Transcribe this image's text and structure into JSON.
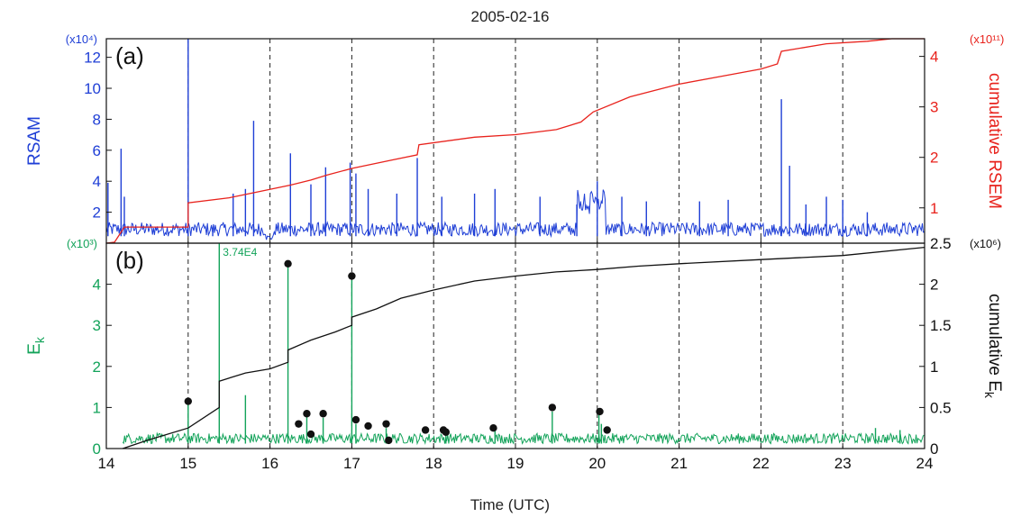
{
  "figure_title": "2005-02-16",
  "x_axis_label": "Time (UTC)",
  "colors": {
    "rsam": "#1f3fd6",
    "rsem": "#e8221c",
    "ek": "#13a35a",
    "cum_ek": "#111111",
    "events": "#111111"
  },
  "chart_data": [
    {
      "panel": "(a)",
      "type": "line",
      "x_ticks": [
        14,
        15,
        16,
        17,
        18,
        19,
        20,
        21,
        22,
        23,
        24
      ],
      "xlim": [
        14,
        24
      ],
      "grid": "dashed vertical lines at each hour",
      "left_axis": {
        "label": "RSAM",
        "multiplier": "(x10⁴)",
        "ylim": [
          0,
          13.2
        ],
        "ticks": [
          2,
          4,
          6,
          8,
          10,
          12
        ]
      },
      "right_axis": {
        "label": "cumulative RSEM",
        "multiplier": "(x10¹¹)",
        "ylim": [
          0.3,
          4.35
        ],
        "ticks": [
          1,
          2,
          3,
          4
        ]
      },
      "series": [
        {
          "axis": "left",
          "description": "RSAM (base noise plus spikes)",
          "spikes": [
            [
              14.02,
              3.9
            ],
            [
              14.18,
              6.1
            ],
            [
              14.22,
              3.0
            ],
            [
              15.0,
              13.2
            ],
            [
              15.3,
              1.0
            ],
            [
              15.55,
              3.2
            ],
            [
              15.7,
              3.5
            ],
            [
              15.8,
              7.9
            ],
            [
              16.25,
              5.8
            ],
            [
              16.5,
              3.8
            ],
            [
              16.68,
              4.9
            ],
            [
              16.98,
              5.2
            ],
            [
              17.05,
              4.5
            ],
            [
              17.2,
              3.5
            ],
            [
              17.55,
              3.2
            ],
            [
              17.8,
              5.5
            ],
            [
              18.1,
              3.0
            ],
            [
              18.5,
              3.2
            ],
            [
              18.75,
              3.5
            ],
            [
              19.3,
              3.0
            ],
            [
              19.75,
              2.5
            ],
            [
              20.0,
              4.0
            ],
            [
              20.3,
              3.0
            ],
            [
              20.6,
              2.7
            ],
            [
              21.25,
              2.7
            ],
            [
              21.6,
              2.8
            ],
            [
              22.25,
              9.3
            ],
            [
              22.35,
              5.0
            ],
            [
              22.55,
              2.5
            ],
            [
              22.8,
              3.0
            ],
            [
              23.0,
              2.8
            ],
            [
              23.3,
              2.0
            ]
          ]
        },
        {
          "axis": "right",
          "description": "cumulative RSEM (step curve)",
          "points": [
            [
              14.0,
              0.3
            ],
            [
              14.1,
              0.32
            ],
            [
              14.22,
              0.62
            ],
            [
              15.0,
              0.62
            ],
            [
              15.0,
              1.1
            ],
            [
              15.5,
              1.2
            ],
            [
              15.8,
              1.3
            ],
            [
              16.25,
              1.45
            ],
            [
              16.5,
              1.55
            ],
            [
              16.7,
              1.65
            ],
            [
              17.0,
              1.78
            ],
            [
              17.5,
              1.95
            ],
            [
              17.8,
              2.05
            ],
            [
              17.82,
              2.25
            ],
            [
              18.5,
              2.4
            ],
            [
              19.0,
              2.45
            ],
            [
              19.5,
              2.55
            ],
            [
              19.8,
              2.7
            ],
            [
              19.95,
              2.9
            ],
            [
              20.4,
              3.2
            ],
            [
              21.0,
              3.45
            ],
            [
              21.5,
              3.6
            ],
            [
              22.0,
              3.75
            ],
            [
              22.2,
              3.85
            ],
            [
              22.25,
              4.1
            ],
            [
              22.8,
              4.25
            ],
            [
              23.3,
              4.3
            ],
            [
              23.6,
              4.35
            ],
            [
              24.0,
              4.35
            ]
          ]
        }
      ]
    },
    {
      "panel": "(b)",
      "type": "line",
      "x_ticks": [
        14,
        15,
        16,
        17,
        18,
        19,
        20,
        21,
        22,
        23,
        24
      ],
      "xlim": [
        14,
        24
      ],
      "grid": "dashed vertical lines at each hour",
      "left_axis": {
        "label": "E",
        "label_sub": "k",
        "multiplier": "(x10³)",
        "ylim": [
          0,
          5
        ],
        "ticks": [
          0,
          1,
          2,
          3,
          4
        ]
      },
      "right_axis": {
        "label": "cumulative E",
        "label_sub": "k",
        "multiplier": "(x10⁶)",
        "ylim": [
          0,
          2.5
        ],
        "ticks": [
          0,
          0.5,
          1,
          1.5,
          2,
          2.5
        ]
      },
      "annotation": {
        "text": "3.74E4",
        "x": 15.38,
        "y": 5
      },
      "series": [
        {
          "axis": "left",
          "description": "E_k (spikes)",
          "spikes": [
            [
              15.0,
              1.1
            ],
            [
              15.38,
              5.0
            ],
            [
              15.7,
              1.3
            ],
            [
              16.22,
              4.5
            ],
            [
              16.45,
              0.8
            ],
            [
              16.65,
              0.75
            ],
            [
              17.0,
              4.1
            ],
            [
              17.05,
              0.6
            ],
            [
              17.42,
              0.5
            ],
            [
              18.15,
              0.45
            ],
            [
              18.75,
              0.45
            ],
            [
              19.45,
              0.9
            ],
            [
              20.02,
              0.85
            ],
            [
              20.05,
              0.6
            ],
            [
              23.4,
              0.5
            ],
            [
              23.7,
              0.45
            ]
          ]
        },
        {
          "axis": "right",
          "description": "cumulative E_k",
          "points": [
            [
              14.2,
              0.0
            ],
            [
              14.5,
              0.1
            ],
            [
              15.0,
              0.25
            ],
            [
              15.38,
              0.5
            ],
            [
              15.38,
              0.82
            ],
            [
              15.7,
              0.92
            ],
            [
              16.0,
              0.97
            ],
            [
              16.22,
              1.05
            ],
            [
              16.22,
              1.2
            ],
            [
              16.5,
              1.32
            ],
            [
              16.8,
              1.42
            ],
            [
              17.0,
              1.5
            ],
            [
              17.0,
              1.6
            ],
            [
              17.3,
              1.7
            ],
            [
              17.6,
              1.83
            ],
            [
              18.0,
              1.93
            ],
            [
              18.5,
              2.04
            ],
            [
              19.0,
              2.1
            ],
            [
              19.5,
              2.15
            ],
            [
              20.0,
              2.18
            ],
            [
              20.5,
              2.22
            ],
            [
              21.0,
              2.25
            ],
            [
              22.0,
              2.3
            ],
            [
              23.0,
              2.35
            ],
            [
              24.0,
              2.45
            ]
          ]
        },
        {
          "axis": "left",
          "description": "event markers",
          "markers": [
            [
              15.0,
              1.15
            ],
            [
              16.22,
              4.5
            ],
            [
              16.35,
              0.6
            ],
            [
              16.45,
              0.85
            ],
            [
              16.5,
              0.35
            ],
            [
              16.65,
              0.85
            ],
            [
              17.0,
              4.2
            ],
            [
              17.05,
              0.7
            ],
            [
              17.2,
              0.55
            ],
            [
              17.42,
              0.6
            ],
            [
              17.45,
              0.2
            ],
            [
              17.9,
              0.45
            ],
            [
              18.12,
              0.45
            ],
            [
              18.15,
              0.4
            ],
            [
              18.73,
              0.5
            ],
            [
              19.45,
              1.0
            ],
            [
              20.03,
              0.9
            ],
            [
              20.12,
              0.45
            ]
          ]
        }
      ]
    }
  ]
}
